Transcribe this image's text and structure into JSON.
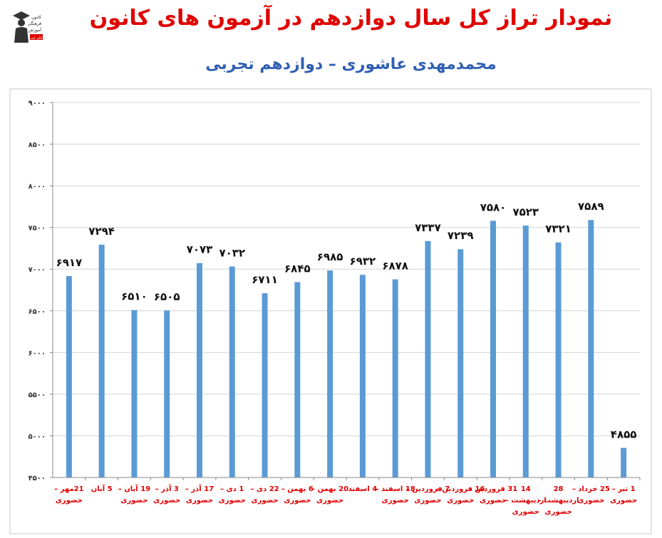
{
  "header": {
    "title": "نمودار تراز کل سال دوازدهم در آزمون های کانون",
    "subtitle": "محمدمهدی عاشوری – دوازدهم تجربی"
  },
  "logo": {
    "lines": [
      "کانون",
      "فرهنگی",
      "آموزش",
      "قلم چی"
    ]
  },
  "colors": {
    "title": "#e00000",
    "subtitle": "#2f5fb3",
    "bar": "#5b9bd5",
    "x_label": "#e00000"
  },
  "chart_data": {
    "type": "bar",
    "title": "نمودار تراز کل سال دوازدهم در آزمون های کانون",
    "subtitle": "محمدمهدی عاشوری – دوازدهم تجربی",
    "categories": [
      [
        "21مهر –",
        "حضوری"
      ],
      [
        "5 آبان"
      ],
      [
        "19 آبان –",
        "حضوری"
      ],
      [
        "3 آذر –",
        "حضوری"
      ],
      [
        "17 آذر –",
        "حضوری"
      ],
      [
        "1 دی –",
        "حضوری"
      ],
      [
        "22 دی –",
        "حضوری"
      ],
      [
        "6 بهمن –",
        "حضوری"
      ],
      [
        "20 بهمن –",
        "حضوری"
      ],
      [
        "4 اسفند"
      ],
      [
        "18 اسفند –",
        "حضوری"
      ],
      [
        "7 فروردین –",
        "حضوری"
      ],
      [
        "16 فروردین –",
        "حضوری"
      ],
      [
        "31 فروردین –",
        "حضوری"
      ],
      [
        "14",
        "اردیبهشت –",
        "حضوری"
      ],
      [
        "28",
        "اردیبهشت –",
        "حضوری"
      ],
      [
        "25 خرداد –",
        "حضوری"
      ],
      [
        "1 تیر –",
        "حضوری"
      ]
    ],
    "values": [
      6917,
      7294,
      6510,
      6505,
      7073,
      7032,
      6711,
      6845,
      6985,
      6932,
      6878,
      7337,
      7239,
      7580,
      7523,
      7321,
      7589,
      4855
    ],
    "data_labels": [
      "۶۹۱۷",
      "۷۲۹۴",
      "۶۵۱۰",
      "۶۵۰۵",
      "۷۰۷۳",
      "۷۰۳۲",
      "۶۷۱۱",
      "۶۸۴۵",
      "۶۹۸۵",
      "۶۹۳۲",
      "۶۸۷۸",
      "۷۳۳۷",
      "۷۲۳۹",
      "۷۵۸۰",
      "۷۵۲۳",
      "۷۳۲۱",
      "۷۵۸۹",
      "۴۸۵۵"
    ],
    "ylim": [
      4500,
      9000
    ],
    "yticks": [
      4500,
      5000,
      5500,
      6000,
      6500,
      7000,
      7500,
      8000,
      8500,
      9000
    ],
    "ytick_labels": [
      "۴۵۰۰",
      "۵۰۰۰",
      "۵۵۰۰",
      "۶۰۰۰",
      "۶۵۰۰",
      "۷۰۰۰",
      "۷۵۰۰",
      "۸۰۰۰",
      "۸۵۰۰",
      "۹۰۰۰"
    ],
    "grid": true,
    "legend": "none"
  }
}
